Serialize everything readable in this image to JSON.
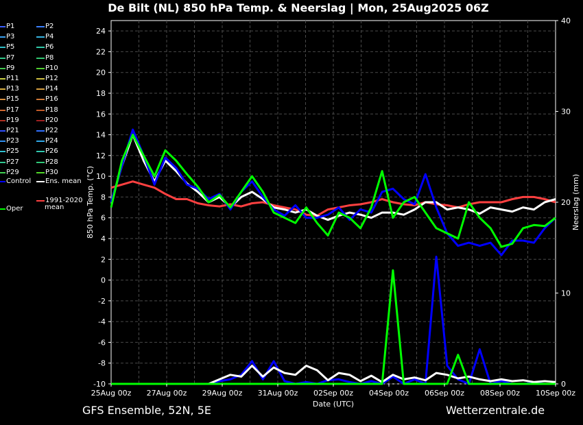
{
  "chart_data": {
    "type": "line",
    "title": "De Bilt  (NL)  850 hPa Temp. & Neerslag | Mon, 25Aug2025 06Z",
    "xlabel": "Date (UTC)",
    "ylabel": "850 hPa Temp. (°C)",
    "y2label": "Neerslag (mm)",
    "footer_left": "GFS Ensemble, 52N, 5E",
    "footer_right": "Wetterzentrale.de",
    "x_tick_labels": [
      "25Aug 00z",
      "27Aug 00z",
      "29Aug 00z",
      "31Aug 00z",
      "02Sep 00z",
      "04Sep 00z",
      "06Sep 00z",
      "08Sep 00z",
      "10Sep 00z"
    ],
    "xlim": [
      0,
      16
    ],
    "ylim": [
      -10,
      25
    ],
    "y_ticks": [
      -10,
      -8,
      -6,
      -4,
      -2,
      0,
      2,
      4,
      6,
      8,
      10,
      12,
      14,
      16,
      18,
      20,
      22,
      24
    ],
    "y2lim": [
      0,
      40
    ],
    "y2_ticks": [
      0,
      10,
      20,
      30,
      40
    ],
    "grid": true,
    "legend_placement": "left, outside plot",
    "members": [
      {
        "name": "P1",
        "color": "#3a5fff"
      },
      {
        "name": "P2",
        "color": "#3a7fff"
      },
      {
        "name": "P3",
        "color": "#3aa0f0"
      },
      {
        "name": "P4",
        "color": "#35b3e0"
      },
      {
        "name": "P5",
        "color": "#30c0c8"
      },
      {
        "name": "P6",
        "color": "#30c8a8"
      },
      {
        "name": "P7",
        "color": "#30c888"
      },
      {
        "name": "P8",
        "color": "#30c870"
      },
      {
        "name": "P9",
        "color": "#40c850"
      },
      {
        "name": "P10",
        "color": "#50d030"
      },
      {
        "name": "P11",
        "color": "#c8d040"
      },
      {
        "name": "P12",
        "color": "#d0c040"
      },
      {
        "name": "P13",
        "color": "#d8b040"
      },
      {
        "name": "P14",
        "color": "#d8a040"
      },
      {
        "name": "P15",
        "color": "#d89040"
      },
      {
        "name": "P16",
        "color": "#d07838"
      },
      {
        "name": "P17",
        "color": "#d06830"
      },
      {
        "name": "P18",
        "color": "#c05828"
      },
      {
        "name": "P19",
        "color": "#b03020"
      },
      {
        "name": "P20",
        "color": "#a02020"
      },
      {
        "name": "P21",
        "color": "#3050ff"
      },
      {
        "name": "P22",
        "color": "#3070ff"
      },
      {
        "name": "P23",
        "color": "#3090f0"
      },
      {
        "name": "P24",
        "color": "#30a8e8"
      },
      {
        "name": "P25",
        "color": "#30c0d0"
      },
      {
        "name": "P26",
        "color": "#30c8b0"
      },
      {
        "name": "P27",
        "color": "#30c890"
      },
      {
        "name": "P28",
        "color": "#30c878"
      },
      {
        "name": "P29",
        "color": "#40d050"
      },
      {
        "name": "P30",
        "color": "#50d828"
      }
    ],
    "series": [
      {
        "name": "Control",
        "color": "#0000ff",
        "temp": [
          7.5,
          11,
          14.5,
          12,
          9.2,
          11.8,
          10.8,
          9.2,
          8.8,
          7.8,
          8.3,
          6.8,
          8.5,
          9.5,
          8,
          6.8,
          6.2,
          7.2,
          6,
          6,
          6.3,
          7,
          5.8,
          6.8,
          6.5,
          8.5,
          8.8,
          7.8,
          7.3,
          10.2,
          7,
          4.5,
          3.3,
          3.6,
          3.3,
          3.6,
          2.4,
          3.8,
          3.8,
          3.6,
          5,
          6
        ],
        "precip": [
          0,
          0,
          0,
          0,
          0,
          0,
          0,
          0,
          0,
          0,
          0.3,
          0.5,
          1,
          2.5,
          0.5,
          2.5,
          0.3,
          0,
          0.2,
          0,
          0.4,
          0.5,
          0.2,
          0,
          0.3,
          0,
          0.8,
          0,
          0.5,
          0,
          14,
          2,
          0.5,
          0,
          3.8,
          0,
          0.3,
          0,
          0,
          0.1,
          0,
          0
        ]
      },
      {
        "name": "Ens. mean",
        "color": "#ffffff",
        "temp": [
          7.5,
          11,
          14,
          11.5,
          9.5,
          11.5,
          10.5,
          9.3,
          8.5,
          7.5,
          8,
          7,
          8,
          8.5,
          7.8,
          7,
          6.8,
          6.5,
          6.8,
          6.2,
          5.8,
          6.2,
          6.5,
          6.3,
          6,
          6.5,
          6.5,
          6.3,
          6.8,
          7.5,
          7.5,
          6.8,
          7,
          6.8,
          6.4,
          7,
          6.8,
          6.6,
          7,
          6.8,
          7.5,
          7.8
        ],
        "precip": [
          0,
          0,
          0,
          0,
          0,
          0,
          0,
          0,
          0,
          0,
          0.5,
          1,
          0.8,
          2,
          0.8,
          1.8,
          1.2,
          1,
          2,
          1.5,
          0.4,
          1.2,
          1,
          0.3,
          0.9,
          0.2,
          1,
          0.5,
          0.7,
          0.4,
          1.2,
          1,
          0.6,
          0.8,
          0.5,
          0.3,
          0.5,
          0.3,
          0.4,
          0.2,
          0.3,
          0.2
        ]
      },
      {
        "name": "Oper",
        "color": "#00ff00",
        "temp": [
          7,
          11.5,
          14,
          12,
          10,
          12.5,
          11.5,
          10.2,
          9,
          7.5,
          8.2,
          7,
          8.5,
          10,
          8.5,
          6.5,
          6,
          5.5,
          7,
          5.5,
          4.3,
          6.5,
          6,
          5,
          7,
          10.5,
          6,
          7.5,
          8,
          6.5,
          5,
          4.5,
          4,
          7.5,
          6,
          5,
          3.2,
          3.5,
          5,
          5.3,
          5.2,
          6
        ],
        "precip": [
          0,
          0,
          0,
          0,
          0,
          0,
          0,
          0,
          0,
          0,
          0,
          0,
          0,
          0,
          0,
          0,
          0,
          0,
          0,
          0,
          0,
          0,
          0,
          0,
          0,
          0,
          12.5,
          0,
          0,
          0,
          0,
          0,
          3.2,
          0,
          0,
          0,
          0,
          0,
          0,
          0,
          0,
          0
        ]
      },
      {
        "name": "1991-2020 mean",
        "color": "#ff4040",
        "temp": [
          8.9,
          9.2,
          9.5,
          9.2,
          8.9,
          8.3,
          7.8,
          7.8,
          7.4,
          7.2,
          7.1,
          7.3,
          7.1,
          7.4,
          7.5,
          7.2,
          7,
          6.8,
          6.3,
          6.2,
          6.8,
          7,
          7.2,
          7.3,
          7.5,
          7.8,
          7.5,
          7.3,
          7.2,
          7.5,
          7.3,
          7.2,
          7,
          7.3,
          7.5,
          7.5,
          7.5,
          7.8,
          8,
          8,
          7.8,
          7.5
        ]
      }
    ],
    "legend_extra": {
      "control": "Control",
      "ens_mean": "Ens. mean",
      "oper": "Oper",
      "climo_line1": "1991-2020",
      "climo_line2": "mean"
    }
  },
  "colors": {
    "background": "#000000",
    "grid": "#4a4a4a",
    "text": "#ffffff"
  }
}
